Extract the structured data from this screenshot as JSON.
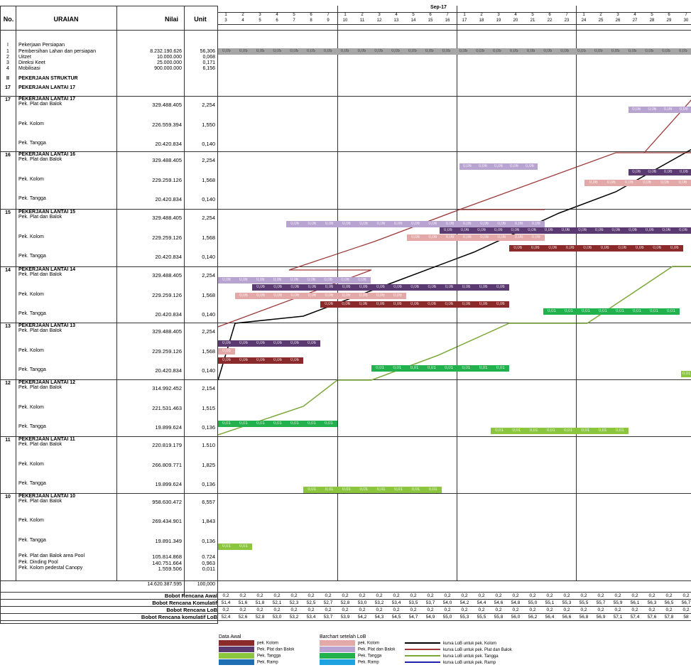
{
  "header": {
    "no": "No.",
    "uraian": "URAIAN",
    "nilai": "Nilai",
    "unit": "Unit",
    "month": "Sep-17"
  },
  "week1_days": [
    "1",
    "2",
    "3",
    "4",
    "5",
    "6",
    "7"
  ],
  "week1_dates": [
    "3",
    "4",
    "5",
    "6",
    "7",
    "8",
    "9"
  ],
  "week2_days": [
    "1",
    "2",
    "3",
    "4",
    "5",
    "6",
    "7"
  ],
  "week2_dates": [
    "10",
    "11",
    "12",
    "13",
    "14",
    "15",
    "16"
  ],
  "week3_days": [
    "1",
    "2",
    "3",
    "4",
    "5",
    "6",
    "7"
  ],
  "week3_dates": [
    "17",
    "18",
    "19",
    "20",
    "21",
    "22",
    "23"
  ],
  "week4_days": [
    "1",
    "2",
    "3",
    "4",
    "5",
    "6",
    "7"
  ],
  "week4_dates": [
    "24",
    "25",
    "26",
    "27",
    "28",
    "29",
    "30"
  ],
  "rows": {
    "r0": {
      "no": "I",
      "uraian": "Pekerjaan Persiapan",
      "nilai": "",
      "unit": ""
    },
    "r1": {
      "no": "1",
      "uraian": "Pembersihan Lahan dan persiapan",
      "nilai": "8.232.190.626",
      "unit": "56,306"
    },
    "r2": {
      "no": "2",
      "uraian": "Uitzet",
      "nilai": "10.000.000",
      "unit": "0,068"
    },
    "r3": {
      "no": "3",
      "uraian": "Direksi Keet",
      "nilai": "25.000.000",
      "unit": "0,171"
    },
    "r4": {
      "no": "4",
      "uraian": "Mobilisasi",
      "nilai": "900.000.000",
      "unit": "6,156"
    },
    "r5": {
      "no": "II",
      "uraian": "PEKERJAAN STRUKTUR",
      "nilai": "",
      "unit": ""
    },
    "r6": {
      "no": "17",
      "uraian": "PEKERJAAN LANTAI 17",
      "nilai": "",
      "unit": ""
    }
  },
  "floors": [
    {
      "no": "17",
      "title": "PEKERJAAN LANTAI 17",
      "items": [
        [
          "Pek. Plat dan Balok",
          "329.488.405",
          "2,254"
        ],
        [
          "Pek. Kolom",
          "226.559.394",
          "1,550"
        ],
        [
          "Pek. Tangga",
          "20.420.834",
          "0,140"
        ]
      ]
    },
    {
      "no": "16",
      "title": "PEKERJAAN LANTAI 16",
      "items": [
        [
          "Pek. Plat dan Balok",
          "329.488.405",
          "2,254"
        ],
        [
          "Pek. Kolom",
          "229.259.126",
          "1,568"
        ],
        [
          "Pek. Tangga",
          "20.420.834",
          "0,140"
        ]
      ]
    },
    {
      "no": "15",
      "title": "PEKERJAAN LANTAI 15",
      "items": [
        [
          "Pek. Plat dan Balok",
          "329.488.405",
          "2,254"
        ],
        [
          "Pek. Kolom",
          "229.259.126",
          "1,568"
        ],
        [
          "Pek. Tangga",
          "20.420.834",
          "0,140"
        ]
      ]
    },
    {
      "no": "14",
      "title": "PEKERJAAN LANTAI 14",
      "items": [
        [
          "Pek. Plat dan Balok",
          "329.488.405",
          "2,254"
        ],
        [
          "Pek. Kolom",
          "229.259.126",
          "1,568"
        ],
        [
          "Pek. Tangga",
          "20.420.834",
          "0,140"
        ]
      ]
    },
    {
      "no": "13",
      "title": "PEKERJAAN LANTAI 13",
      "items": [
        [
          "Pek. Plat dan Balok",
          "329.488.405",
          "2,254"
        ],
        [
          "Pek. Kolom",
          "229.259.126",
          "1,568"
        ],
        [
          "Pek. Tangga",
          "20.420.834",
          "0,140"
        ]
      ]
    },
    {
      "no": "12",
      "title": "PEKERJAAN LANTAI 12",
      "items": [
        [
          "Pek. Plat dan Balok",
          "314.992.452",
          "2,154"
        ],
        [
          "Pek. Kolom",
          "221.531.463",
          "1,515"
        ],
        [
          "Pek. Tangga",
          "19.899.624",
          "0,136"
        ]
      ]
    },
    {
      "no": "11",
      "title": "PEKERJAAN LANTAI 11",
      "items": [
        [
          "Pek. Plat dan Balok",
          "220.819.179",
          "1.510"
        ],
        [
          "Pek. Kolom",
          "266.809.771",
          "1,825"
        ],
        [
          "Pek. Tangga",
          "19.899.624",
          "0,136"
        ]
      ]
    },
    {
      "no": "10",
      "title": "PEKERJAAN LANTAI 10",
      "items": [
        [
          "Pek. Plat dan Balok",
          "958.630.472",
          "6,557"
        ],
        [
          "Pek. Kolom",
          "269.434.901",
          "1,843"
        ],
        [
          "Pek. Tangga",
          "19.891.349",
          "0,136"
        ],
        [
          "Pek. Plat dan Balok  area Pool",
          "105.814.868",
          "0.724"
        ],
        [
          "Pek. Dinding Pool",
          "140.751.664",
          "0,963"
        ],
        [
          "Pek. Kolom pedestal Canopy",
          "1.559.506",
          "0,011"
        ]
      ]
    }
  ],
  "totals": {
    "nilai": "14.620.387.595",
    "unit": "100,000"
  },
  "footer": {
    "awal_label": "Bobot Rencana Awal",
    "komulatif_label": "Bobot Rencana Komulatif",
    "lob_label": "Bobot Rencana LoB",
    "komulatif_lob_label": "Bobot Rencana komulatif LoB",
    "awal": [
      "0,2",
      "0,2",
      "0,2",
      "0,2",
      "0,2",
      "0,2",
      "0,2",
      "0,2",
      "0,2",
      "0,2",
      "0,2",
      "0,2",
      "0,2",
      "0,2",
      "0,2",
      "0,2",
      "0,2",
      "0,2",
      "0,2",
      "0,2",
      "0,2",
      "0,2",
      "0,2",
      "0,2",
      "0,2",
      "0,2",
      "0,2",
      "0,2"
    ],
    "komulatif": [
      "51,4",
      "51,6",
      "51,8",
      "52,1",
      "52,3",
      "52,5",
      "52,7",
      "52,8",
      "53,0",
      "53,2",
      "53,4",
      "53,5",
      "53,7",
      "54,0",
      "54,2",
      "54,4",
      "54,6",
      "54,8",
      "55,0",
      "55,1",
      "55,3",
      "55,5",
      "55,7",
      "55,9",
      "56,1",
      "56,3",
      "56,5",
      "56,7"
    ],
    "lob": [
      "0,2",
      "0,2",
      "0,2",
      "0,2",
      "0,2",
      "0,2",
      "0,2",
      "0,2",
      "0,2",
      "0,2",
      "0,2",
      "0,2",
      "0,2",
      "0,2",
      "0,2",
      "0,2",
      "0,2",
      "0,2",
      "0,2",
      "0,2",
      "0,2",
      "0,2",
      "0,2",
      "0,2",
      "0,2",
      "0,2",
      "0,2",
      "0,2"
    ],
    "komulatif_lob": [
      "52,4",
      "52,6",
      "52,8",
      "53,0",
      "53,2",
      "53,4",
      "53,7",
      "53,9",
      "54,2",
      "54,3",
      "54,5",
      "54,7",
      "54,9",
      "55,0",
      "55,3",
      "55,5",
      "55,8",
      "56,0",
      "56,2",
      "56,4",
      "56,6",
      "56,8",
      "56,9",
      "57,1",
      "57,4",
      "57,6",
      "57,8",
      "58"
    ]
  },
  "bar_values": {
    "persiapan": "0,05",
    "struktur": "0,06",
    "tangga": "0,01"
  },
  "legend": {
    "col1_title": "Data Awal",
    "col1": [
      "pek. Kolom",
      "Pek. Plat dan Balok",
      "Pek. Tangga",
      "Pek. Ramp"
    ],
    "col2_title": "Barchart setelah LoB",
    "col2": [
      "pek. Kolom",
      "Pek. Plat dan Balok",
      "Pek. Tangga",
      "Pek. Ramp"
    ],
    "col3": [
      "kurva LoB untuk pek. Kolom",
      "kurva LoB untuk pek. Plat dan Balok",
      "kurva LoB untuk pek. Tangga",
      "kurva LoB untuk pek. Ramp"
    ]
  },
  "colors": {
    "kolom_awal": "#8B2A2A",
    "plat_awal": "#5B3A72",
    "tangga_awal": "#8CC63F",
    "ramp_awal": "#1F6FB5",
    "kolom_lob": "#E3A9A9",
    "plat_lob": "#B8A3D1",
    "tangga_lob": "#22B14C",
    "ramp_lob": "#1FA3E0",
    "persiapan": "#A6A6A6"
  }
}
